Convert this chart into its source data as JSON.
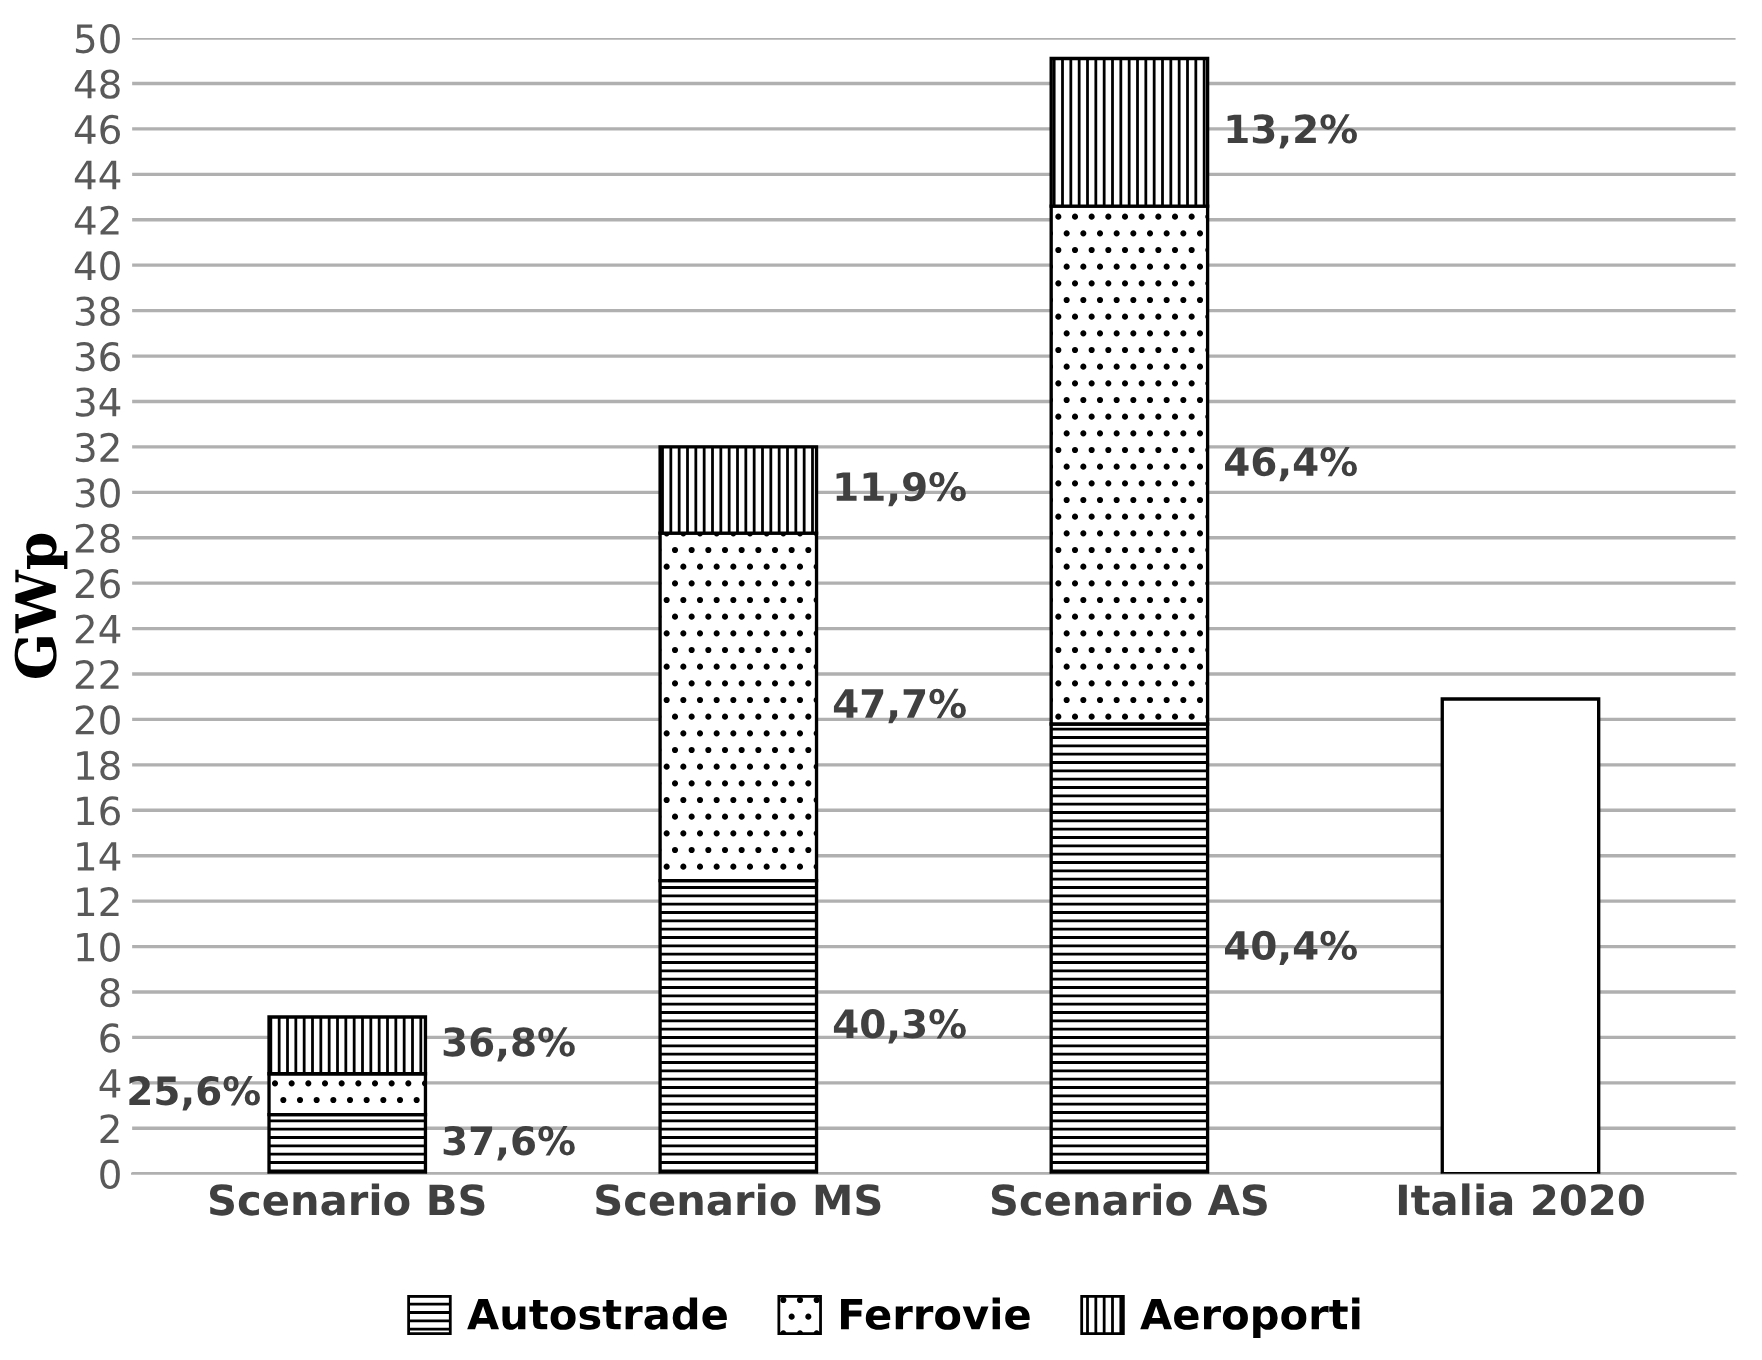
{
  "chart_data": {
    "type": "bar",
    "stacked": true,
    "ylabel": "GWp",
    "categories": [
      "Scenario BS",
      "Scenario MS",
      "Scenario AS",
      "Italia 2020"
    ],
    "series": [
      {
        "name": "Autostrade",
        "color": "#000000",
        "values": [
          2.6,
          12.9,
          19.8,
          null
        ]
      },
      {
        "name": "Ferrovie",
        "color": "#000000",
        "values": [
          1.8,
          15.3,
          22.8,
          null
        ]
      },
      {
        "name": "Aeroporti",
        "color": "#000000",
        "values": [
          2.5,
          3.8,
          6.5,
          null
        ]
      },
      {
        "color": "#000000",
        "values": [
          null,
          null,
          null,
          20.9
        ]
      }
    ],
    "annotations": [
      "37,6%",
      "25,6%",
      "36,8%",
      "40,3%",
      "47,7%",
      "11,9%",
      "40,4%",
      "46,4%",
      "13,2%"
    ],
    "ylim": [
      0,
      50
    ],
    "yticks": [
      0,
      2,
      4,
      6,
      8,
      10,
      12,
      14,
      16,
      18,
      20,
      22,
      24,
      26,
      28,
      30,
      32,
      34,
      36,
      38,
      40,
      42,
      44,
      46,
      48,
      50
    ],
    "grid": "y",
    "legend": "bottom"
  }
}
